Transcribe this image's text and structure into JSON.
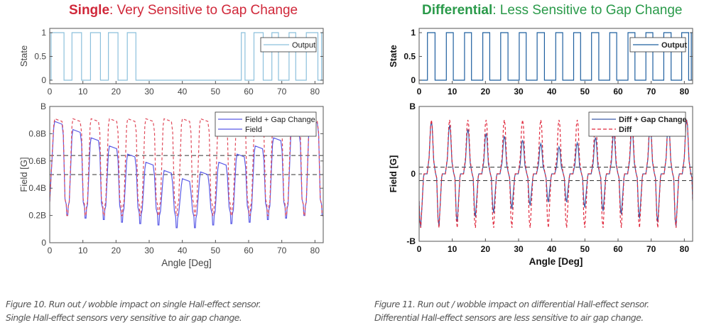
{
  "panels": {
    "left": {
      "title_bold": "Single",
      "title_rest": ": Very Sensitive to Gap Change",
      "title_color": "#d0283a",
      "caption_line1": "Figure 10. Run out / wobble impact on single Hall-effect sensor.",
      "caption_line2": "Single Hall-effect sensors very sensitive to air gap change."
    },
    "right": {
      "title_bold": "Differential",
      "title_rest": ": Less Sensitive to Gap Change",
      "title_color": "#2a9a4a",
      "caption_line1": "Figure 11. Run out / wobble impact on differential Hall-effect sensor.",
      "caption_line2": "Differential Hall-effect sensors are less sensitive to air gap change."
    }
  },
  "chart_data": [
    {
      "type": "line",
      "panel": "single-output",
      "ylabel": "State",
      "xlabel": "",
      "xlim": [
        0,
        82.5
      ],
      "ylim": [
        -0.075,
        1.09
      ],
      "xticks": [
        "0",
        "10",
        "20",
        "30",
        "40",
        "50",
        "60",
        "70",
        "80"
      ],
      "yticks": [
        {
          "v": 0,
          "label": "0"
        },
        {
          "v": 0.5,
          "label": "0.5"
        },
        {
          "v": 1,
          "label": "1"
        }
      ],
      "legend": {
        "position": "top-right",
        "entries": [
          "Output"
        ]
      },
      "series": [
        {
          "name": "Output",
          "color": "#8cc0dc",
          "style": "solid",
          "high_intervals": [
            [
              0.4,
              4.3
            ],
            [
              6.7,
              9.6
            ],
            [
              12.3,
              15.3
            ],
            [
              17.7,
              20.6
            ],
            [
              23.4,
              26.0
            ],
            [
              57.8,
              58.9
            ],
            [
              61.6,
              64.4
            ],
            [
              67.0,
              69.0
            ],
            [
              72.2,
              74.2
            ],
            [
              77.4,
              80.9
            ],
            [
              82.0,
              82.5
            ]
          ]
        }
      ]
    },
    {
      "type": "line",
      "panel": "single-field",
      "ylabel": "Field [G]",
      "xlabel": "Angle [Deg]",
      "xlim": [
        0,
        82.5
      ],
      "ylim": [
        0,
        1
      ],
      "xticks": [
        "0",
        "10",
        "20",
        "30",
        "40",
        "50",
        "60",
        "70",
        "80"
      ],
      "yticks": [
        {
          "v": 0,
          "label": "0"
        },
        {
          "v": 0.2,
          "label": "0.2B"
        },
        {
          "v": 0.4,
          "label": "0.4B"
        },
        {
          "v": 0.6,
          "label": "0.6B"
        },
        {
          "v": 0.8,
          "label": "0.8B"
        },
        {
          "v": 1,
          "label": "B"
        }
      ],
      "thresholds": [
        0.64,
        0.5
      ],
      "legend": {
        "position": "top-right",
        "entries": [
          "Field + Gap Change",
          "Field"
        ]
      },
      "series": [
        {
          "name": "Field + Gap Change",
          "color": "#5a5ae6",
          "style": "solid",
          "start": 0.3,
          "peak_x": [
            2.6,
            8.1,
            13.6,
            19.1,
            24.6,
            30.1,
            35.6,
            41.1,
            46.6,
            52.1,
            57.6,
            63.1,
            68.6,
            74.1,
            79.6
          ],
          "peak_y": [
            0.89,
            0.83,
            0.77,
            0.71,
            0.65,
            0.59,
            0.53,
            0.47,
            0.52,
            0.59,
            0.65,
            0.71,
            0.77,
            0.83,
            0.9
          ],
          "trough_x": [
            5.3,
            10.8,
            16.3,
            21.8,
            27.3,
            32.8,
            38.3,
            43.8,
            49.3,
            54.8,
            60.3,
            65.8,
            71.3,
            76.8,
            82.3
          ],
          "trough_y": [
            0.2,
            0.18,
            0.17,
            0.15,
            0.14,
            0.13,
            0.11,
            0.11,
            0.13,
            0.14,
            0.15,
            0.17,
            0.18,
            0.2,
            0.2
          ]
        },
        {
          "name": "Field",
          "color": "#e04a5a",
          "style": "dashed",
          "start": 0.3,
          "peak_x": [
            2.6,
            8.1,
            13.6,
            19.1,
            24.6,
            30.1,
            35.6,
            41.1,
            46.6,
            52.1,
            57.6,
            63.1,
            68.6,
            74.1,
            79.6
          ],
          "peak_y": [
            0.91,
            0.91,
            0.91,
            0.91,
            0.91,
            0.91,
            0.91,
            0.91,
            0.91,
            0.91,
            0.91,
            0.91,
            0.91,
            0.91,
            0.91
          ],
          "trough_x": [
            5.3,
            10.8,
            16.3,
            21.8,
            27.3,
            32.8,
            38.3,
            43.8,
            49.3,
            54.8,
            60.3,
            65.8,
            71.3,
            76.8,
            82.3
          ],
          "trough_y": [
            0.2,
            0.2,
            0.2,
            0.2,
            0.2,
            0.2,
            0.2,
            0.2,
            0.2,
            0.2,
            0.2,
            0.2,
            0.2,
            0.2,
            0.2
          ]
        }
      ]
    },
    {
      "type": "line",
      "panel": "differential-output",
      "ylabel": "State",
      "xlabel": "",
      "xlim": [
        0,
        82.5
      ],
      "ylim": [
        -0.075,
        1.09
      ],
      "xticks": [
        "0",
        "10",
        "20",
        "30",
        "40",
        "50",
        "60",
        "70",
        "80"
      ],
      "yticks": [
        {
          "v": 0,
          "label": "0"
        },
        {
          "v": 0.5,
          "label": "0.5"
        },
        {
          "v": 1,
          "label": "1"
        }
      ],
      "legend": {
        "position": "top-right",
        "entries": [
          "Output"
        ]
      },
      "series": [
        {
          "name": "Output",
          "color": "#1f5f9f",
          "style": "solid",
          "high_intervals": [
            [
              2.5,
              4.8
            ],
            [
              8.2,
              10.3
            ],
            [
              13.7,
              15.8
            ],
            [
              19.2,
              21.3
            ],
            [
              24.6,
              26.8
            ],
            [
              30.2,
              32.3
            ],
            [
              35.6,
              37.8
            ],
            [
              41.2,
              43.3
            ],
            [
              46.6,
              48.7
            ],
            [
              52.0,
              54.2
            ],
            [
              57.5,
              59.6
            ],
            [
              63.0,
              65.1
            ],
            [
              68.4,
              70.5
            ],
            [
              73.8,
              76.0
            ],
            [
              79.2,
              81.3
            ],
            [
              82.1,
              82.5
            ]
          ]
        }
      ]
    },
    {
      "type": "line",
      "panel": "differential-field",
      "ylabel": "Field [G]",
      "xlabel": "Angle [Deg]",
      "xlim": [
        0,
        82.5
      ],
      "ylim": [
        -1,
        1
      ],
      "xticks": [
        "0",
        "10",
        "20",
        "30",
        "40",
        "50",
        "60",
        "70",
        "80"
      ],
      "yticks": [
        {
          "v": -1,
          "label": "-B"
        },
        {
          "v": 0,
          "label": "0"
        },
        {
          "v": 1,
          "label": "B"
        }
      ],
      "thresholds": [
        0.1,
        -0.1
      ],
      "legend": {
        "position": "top-right",
        "entries": [
          "Diff + Gap Change",
          "Diff"
        ]
      },
      "series": [
        {
          "name": "Diff + Gap Change",
          "color": "#3a5aa8",
          "style": "solid",
          "start": -0.4,
          "end": -0.4,
          "peak_x": [
            3.7,
            9.2,
            14.7,
            20.2,
            25.7,
            31.2,
            36.7,
            42.2,
            47.7,
            53.2,
            58.7,
            64.2,
            69.7,
            75.2,
            80.7
          ],
          "peak_y": [
            0.78,
            0.72,
            0.66,
            0.6,
            0.56,
            0.5,
            0.45,
            0.4,
            0.46,
            0.54,
            0.6,
            0.66,
            0.72,
            0.78,
            0.8
          ],
          "trough_x": [
            0.5,
            6.0,
            11.5,
            17.0,
            22.5,
            28.0,
            33.5,
            39.0,
            44.5,
            50.0,
            55.5,
            61.0,
            66.5,
            72.0,
            77.5
          ],
          "trough_y": [
            -0.8,
            -0.78,
            -0.71,
            -0.64,
            -0.58,
            -0.52,
            -0.47,
            -0.42,
            -0.42,
            -0.5,
            -0.55,
            -0.6,
            -0.66,
            -0.72,
            -0.78
          ]
        },
        {
          "name": "Diff",
          "color": "#e0283c",
          "style": "dashed",
          "start": -0.4,
          "end": -0.4,
          "peak_x": [
            3.7,
            9.2,
            14.7,
            20.2,
            25.7,
            31.2,
            36.7,
            42.2,
            47.7,
            53.2,
            58.7,
            64.2,
            69.7,
            75.2,
            80.7
          ],
          "peak_y": [
            0.8,
            0.8,
            0.8,
            0.8,
            0.8,
            0.8,
            0.8,
            0.8,
            0.8,
            0.8,
            0.8,
            0.8,
            0.8,
            0.8,
            0.8
          ],
          "trough_x": [
            0.5,
            6.0,
            11.5,
            17.0,
            22.5,
            28.0,
            33.5,
            39.0,
            44.5,
            50.0,
            55.5,
            61.0,
            66.5,
            72.0,
            77.5
          ],
          "trough_y": [
            -0.8,
            -0.8,
            -0.8,
            -0.8,
            -0.8,
            -0.8,
            -0.8,
            -0.8,
            -0.8,
            -0.8,
            -0.8,
            -0.8,
            -0.8,
            -0.8,
            -0.8
          ]
        }
      ]
    }
  ]
}
